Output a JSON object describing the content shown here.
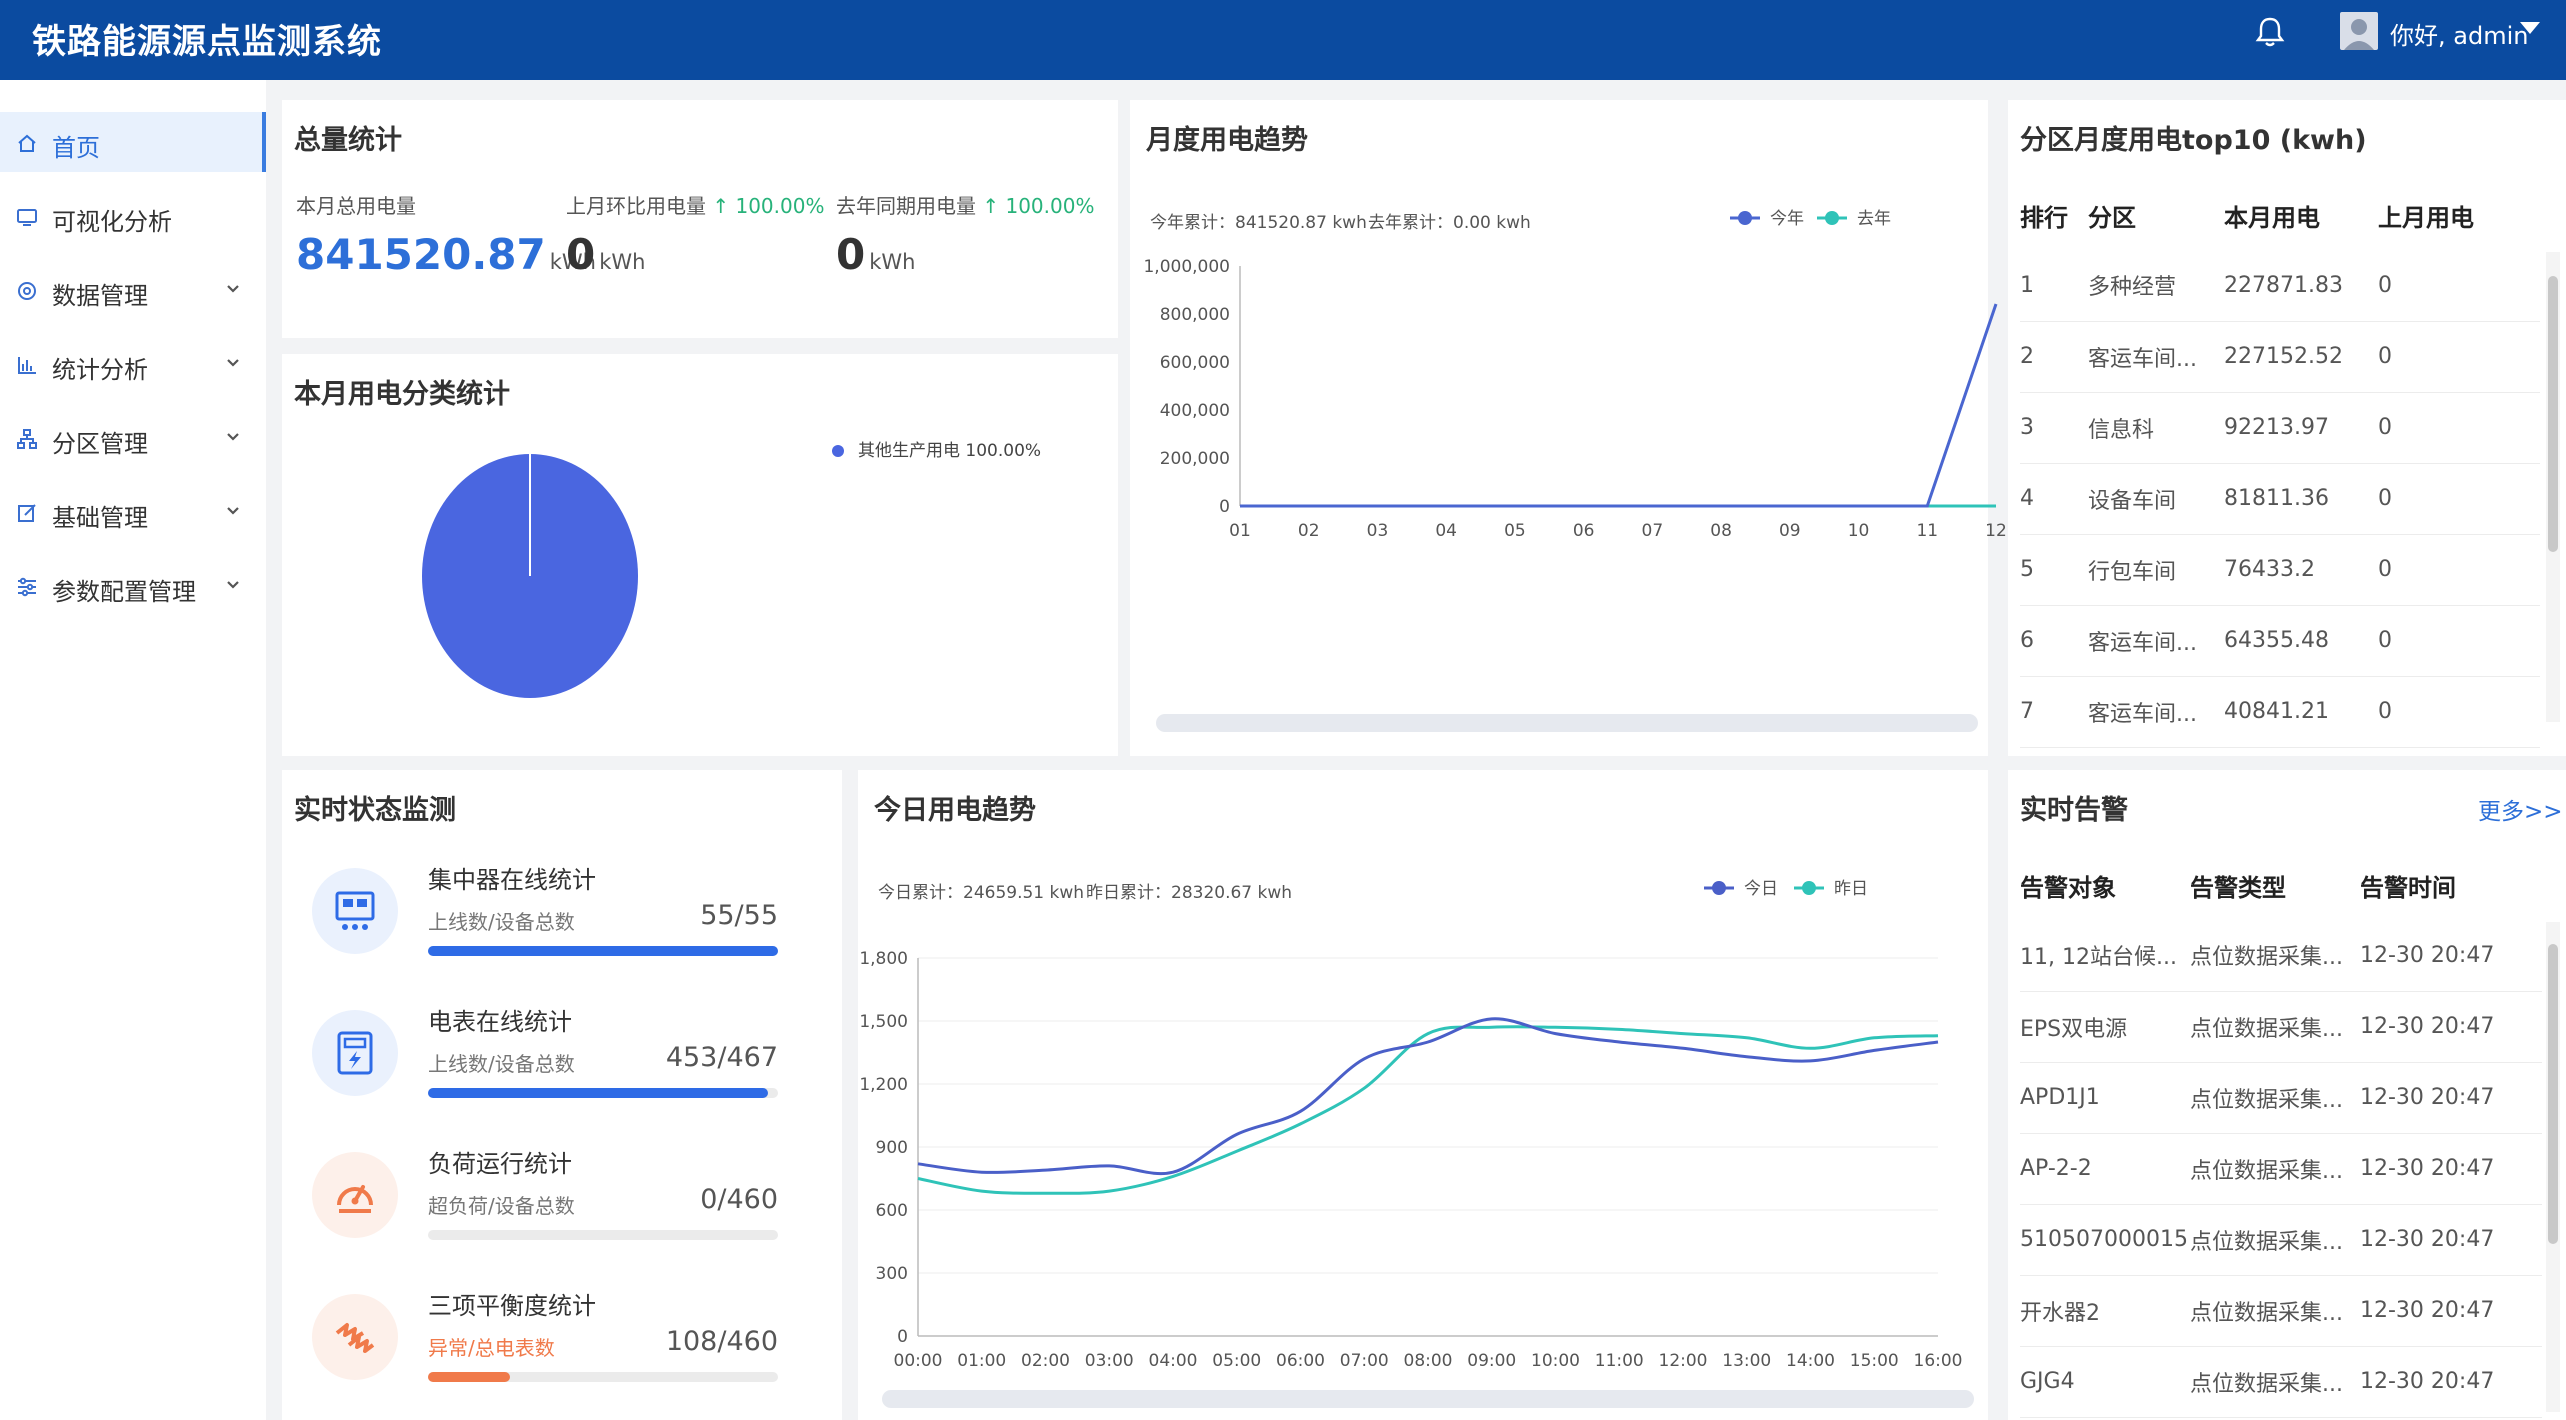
{
  "header": {
    "title": "铁路能源源点监测系统",
    "user": "你好, admin"
  },
  "sidebar": {
    "items": [
      {
        "label": "首页",
        "icon": "home-icon",
        "active": true,
        "has_children": false
      },
      {
        "label": "可视化分析",
        "icon": "monitor-icon",
        "active": false,
        "has_children": false
      },
      {
        "label": "数据管理",
        "icon": "database-icon",
        "active": false,
        "has_children": true
      },
      {
        "label": "统计分析",
        "icon": "bar-chart-icon",
        "active": false,
        "has_children": true
      },
      {
        "label": "分区管理",
        "icon": "hierarchy-icon",
        "active": false,
        "has_children": true
      },
      {
        "label": "基础管理",
        "icon": "edit-icon",
        "active": false,
        "has_children": true
      },
      {
        "label": "参数配置管理",
        "icon": "sliders-icon",
        "active": false,
        "has_children": true
      }
    ]
  },
  "total_stats": {
    "title": "总量统计",
    "this_month_label": "本月总用电量",
    "this_month_value": "841520.87",
    "mom_label": "上月环比用电量",
    "mom_pct": "↑ 100.00%",
    "mom_value": "0",
    "yoy_label": "去年同期用电量",
    "yoy_pct": "↑ 100.00%",
    "yoy_value": "0",
    "unit": "kWh"
  },
  "category": {
    "title": "本月用电分类统计",
    "legend": "其他生产用电 100.00%",
    "chart_data": {
      "type": "pie",
      "labels": [
        "其他生产用电"
      ],
      "values": [
        100
      ],
      "colors": [
        "#4a66e0"
      ]
    }
  },
  "monthly": {
    "title": "月度用电趋势",
    "summary_this": "今年累计：841520.87 kwh",
    "summary_last": "去年累计：0.00 kwh",
    "chart_data": {
      "type": "line",
      "title": "月度用电趋势",
      "x": [
        "01",
        "02",
        "03",
        "04",
        "05",
        "06",
        "07",
        "08",
        "09",
        "10",
        "11",
        "12"
      ],
      "ylim": [
        0,
        1000000
      ],
      "yticks": [
        0,
        200000,
        400000,
        600000,
        800000,
        1000000
      ],
      "ytick_labels": [
        "0",
        "200,000",
        "400,000",
        "600,000",
        "800,000",
        "1,000,000"
      ],
      "series": [
        {
          "name": "今年",
          "color": "#4a66d0",
          "values": [
            0,
            0,
            0,
            0,
            0,
            0,
            0,
            0,
            0,
            0,
            0,
            841520.87
          ]
        },
        {
          "name": "去年",
          "color": "#2fc3b8",
          "values": [
            0,
            0,
            0,
            0,
            0,
            0,
            0,
            0,
            0,
            0,
            0,
            0
          ]
        }
      ]
    }
  },
  "top10": {
    "title": "分区月度用电top10 (kwh)",
    "columns": [
      "排行",
      "分区",
      "本月用电",
      "上月用电"
    ],
    "rows": [
      [
        "1",
        "多种经营",
        "227871.83",
        "0"
      ],
      [
        "2",
        "客运车间...",
        "227152.52",
        "0"
      ],
      [
        "3",
        "信息科",
        "92213.97",
        "0"
      ],
      [
        "4",
        "设备车间",
        "81811.36",
        "0"
      ],
      [
        "5",
        "行包车间",
        "76433.2",
        "0"
      ],
      [
        "6",
        "客运车间...",
        "64355.48",
        "0"
      ],
      [
        "7",
        "客运车间...",
        "40841.21",
        "0"
      ]
    ]
  },
  "realtime": {
    "title": "实时状态监测",
    "items": [
      {
        "title": "集中器在线统计",
        "sub": "上线数/设备总数",
        "value": "55/55",
        "progress": 1.0,
        "color": "#2e6be6",
        "bg": "#eaf1fd",
        "icon": "concentrator-icon"
      },
      {
        "title": "电表在线统计",
        "sub": "上线数/设备总数",
        "value": "453/467",
        "progress": 0.97,
        "color": "#2e6be6",
        "bg": "#eaf1fd",
        "icon": "meter-icon"
      },
      {
        "title": "负荷运行统计",
        "sub": "超负荷/设备总数",
        "value": "0/460",
        "progress": 0.0,
        "color": "#f07a4a",
        "bg": "#fdf0ea",
        "icon": "gauge-icon"
      },
      {
        "title": "三项平衡度统计",
        "sub": "异常/总电表数",
        "value": "108/460",
        "progress": 0.235,
        "color": "#f07a4a",
        "bg": "#fdf0ea",
        "icon": "lightning-icon"
      }
    ]
  },
  "daily": {
    "title": "今日用电趋势",
    "summary_today": "今日累计：24659.51 kwh",
    "summary_yesterday": "昨日累计：28320.67 kwh",
    "chart_data": {
      "type": "line",
      "title": "今日用电趋势",
      "x": [
        "00:00",
        "01:00",
        "02:00",
        "03:00",
        "04:00",
        "05:00",
        "06:00",
        "07:00",
        "08:00",
        "09:00",
        "10:00",
        "11:00",
        "12:00",
        "13:00",
        "14:00",
        "15:00",
        "16:00"
      ],
      "ylim": [
        0,
        1800
      ],
      "yticks": [
        0,
        300,
        600,
        900,
        1200,
        1500,
        1800
      ],
      "ytick_labels": [
        "0",
        "300",
        "600",
        "900",
        "1,200",
        "1,500",
        "1,800"
      ],
      "series": [
        {
          "name": "今日",
          "color": "#4a5fc8",
          "values": [
            820,
            780,
            790,
            810,
            780,
            960,
            1070,
            1320,
            1400,
            1510,
            1440,
            1400,
            1370,
            1330,
            1310,
            1360,
            1400
          ]
        },
        {
          "name": "昨日",
          "color": "#2fc3b8",
          "values": [
            750,
            690,
            680,
            690,
            760,
            880,
            1010,
            1180,
            1440,
            1470,
            1470,
            1460,
            1440,
            1420,
            1370,
            1420,
            1430
          ]
        }
      ]
    }
  },
  "alarms": {
    "title": "实时告警",
    "more": "更多>>",
    "columns": [
      "告警对象",
      "告警类型",
      "告警时间"
    ],
    "rows": [
      [
        "11, 12站台候...",
        "点位数据采集...",
        "12-30 20:47"
      ],
      [
        "EPS双电源",
        "点位数据采集...",
        "12-30 20:47"
      ],
      [
        "APD1J1",
        "点位数据采集...",
        "12-30 20:47"
      ],
      [
        "AP-2-2",
        "点位数据采集...",
        "12-30 20:47"
      ],
      [
        "510507000015",
        "点位数据采集...",
        "12-30 20:47"
      ],
      [
        "开水器2",
        "点位数据采集...",
        "12-30 20:47"
      ],
      [
        "GJG4",
        "点位数据采集...",
        "12-30 20:47"
      ]
    ]
  },
  "colors": {
    "header": "#0b4ba0",
    "accent": "#2d6fd8",
    "up": "#27b27a"
  }
}
